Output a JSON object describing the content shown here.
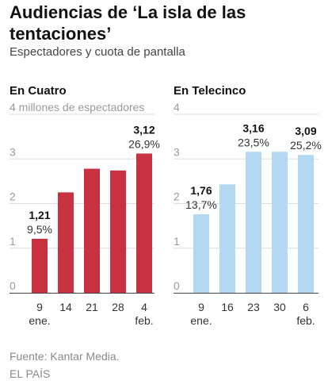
{
  "title": "Audiencias de ‘La isla de las tentaciones’",
  "subtitle": "Espectadores y cuota de pantalla",
  "source": "Fuente: Kantar Media.",
  "brand": "EL PAÍS",
  "colors": {
    "cuatro": "#c8313f",
    "telecinco": "#b4d8f2",
    "grid": "#dddddd",
    "axis": "#444444"
  },
  "chart_data": [
    {
      "type": "bar",
      "title": "En Cuatro",
      "ylabel": "4 millones de espectadores",
      "ylim": [
        0,
        4
      ],
      "yticks": [
        "0",
        "1",
        "2",
        "3",
        "4"
      ],
      "categories": [
        "9",
        "14",
        "21",
        "28",
        "4"
      ],
      "category_sublabels": [
        "ene.",
        "",
        "",
        "",
        "feb."
      ],
      "values": [
        1.21,
        2.25,
        2.78,
        2.74,
        3.12
      ],
      "annotations": [
        {
          "index": 0,
          "value_label": "1,21",
          "share_label": "9,5%"
        },
        {
          "index": 4,
          "value_label": "3,12",
          "share_label": "26,9%"
        }
      ]
    },
    {
      "type": "bar",
      "title": "En Telecinco",
      "ylim": [
        0,
        4
      ],
      "yticks": [
        "0",
        "1",
        "2",
        "3",
        "4"
      ],
      "categories": [
        "9",
        "16",
        "23",
        "30",
        "6"
      ],
      "category_sublabels": [
        "ene.",
        "",
        "",
        "",
        "feb."
      ],
      "values": [
        1.76,
        2.43,
        3.16,
        3.16,
        3.09
      ],
      "annotations": [
        {
          "index": 0,
          "value_label": "1,76",
          "share_label": "13,7%"
        },
        {
          "index": 2,
          "value_label": "3,16",
          "share_label": "23,5%"
        },
        {
          "index": 4,
          "value_label": "3,09",
          "share_label": "25,2%"
        }
      ]
    }
  ]
}
